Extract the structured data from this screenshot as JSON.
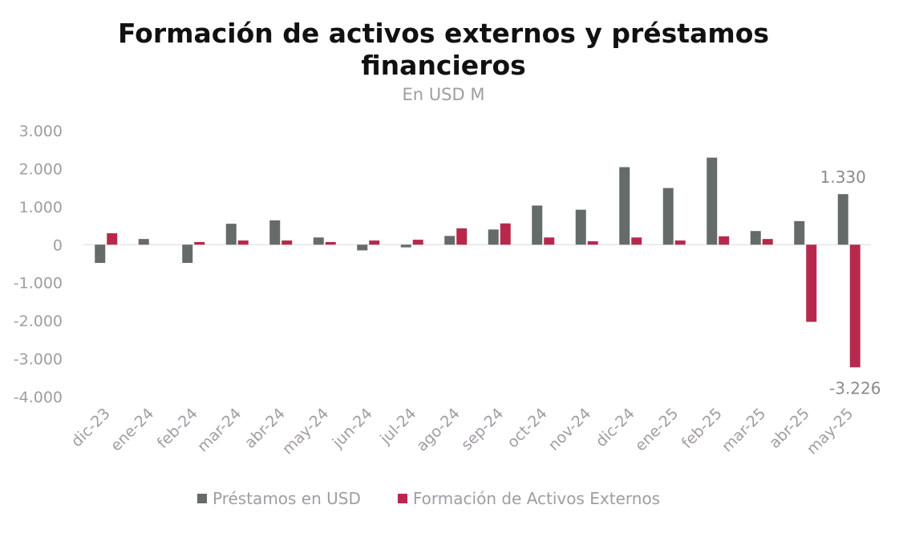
{
  "chart_data": {
    "type": "bar",
    "title_line1": "Formación de activos externos y préstamos",
    "title_line2": "financieros",
    "subtitle": "En USD M",
    "categories": [
      "dic-23",
      "ene-24",
      "feb-24",
      "mar-24",
      "abr-24",
      "may-24",
      "jun-24",
      "jul-24",
      "ago-24",
      "sep-24",
      "oct-24",
      "nov-24",
      "dic-24",
      "ene-25",
      "feb-25",
      "mar-25",
      "abr-25",
      "may-25"
    ],
    "series": [
      {
        "name": "Préstamos en USD",
        "color": "#646b69",
        "values": [
          -480,
          150,
          -480,
          550,
          640,
          190,
          -150,
          -70,
          230,
          400,
          1030,
          920,
          2040,
          1490,
          2290,
          360,
          620,
          1330
        ]
      },
      {
        "name": "Formación de Activos Externos",
        "color": "#b7294c",
        "values": [
          300,
          0,
          70,
          110,
          110,
          70,
          110,
          130,
          430,
          560,
          190,
          90,
          190,
          110,
          220,
          150,
          -2030,
          -3226
        ]
      }
    ],
    "yticks": [
      "3.000",
      "2.000",
      "1.000",
      "0",
      "-1.000",
      "-2.000",
      "-3.000",
      "-4.000"
    ],
    "ylim": [
      -4000,
      3000
    ],
    "data_labels": [
      {
        "series": 0,
        "index": 17,
        "text": "1.330"
      },
      {
        "series": 1,
        "index": 17,
        "text": "-3.226"
      }
    ],
    "legend_position": "bottom"
  }
}
